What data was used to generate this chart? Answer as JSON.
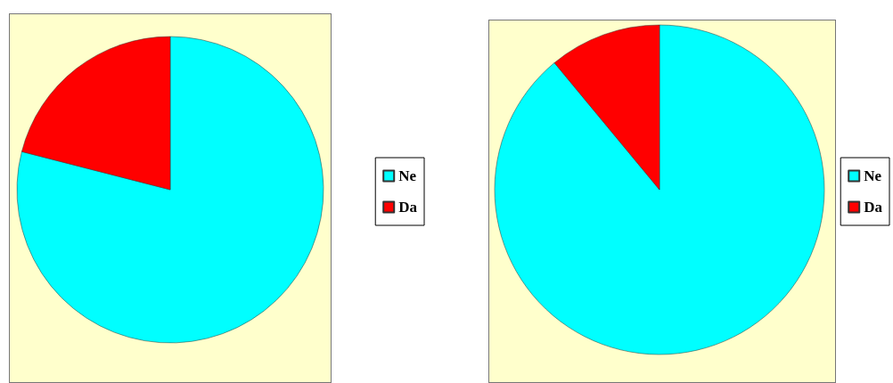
{
  "chart_data": [
    {
      "type": "pie",
      "categories": [
        "Ne",
        "Da"
      ],
      "values": [
        79,
        21
      ],
      "colors": [
        "#00ffff",
        "#ff0000"
      ],
      "legend": "right"
    },
    {
      "type": "pie",
      "categories": [
        "Ne",
        "Da"
      ],
      "values": [
        89,
        11
      ],
      "colors": [
        "#00ffff",
        "#ff0000"
      ],
      "legend": "right"
    }
  ]
}
